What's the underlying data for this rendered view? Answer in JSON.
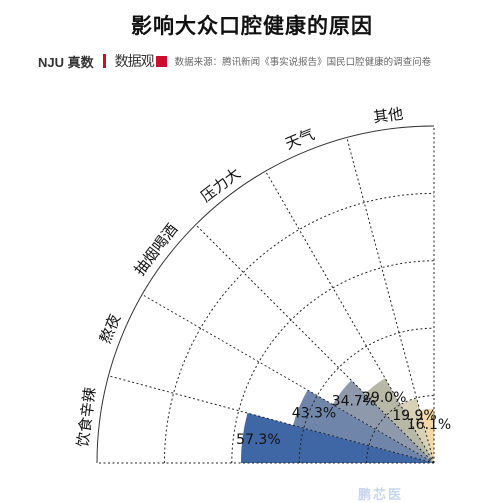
{
  "title": "影响大众口腔健康的原因",
  "byline": {
    "brand": "NJU 真数",
    "logo": "数据观",
    "source": "数据来源：腾讯新闻《事实说报告》国民口腔健康的调查问卷"
  },
  "watermark": "鹏芯医",
  "chart_data": {
    "type": "polar-bar",
    "categories": [
      "饮食辛辣",
      "熬夜",
      "抽烟喝酒",
      "压力大",
      "天气",
      "其他"
    ],
    "values": [
      57.3,
      43.3,
      34.7,
      29.0,
      19.9,
      16.1
    ],
    "value_labels": [
      "57.3%",
      "43.3%",
      "34.7%",
      "29.0%",
      "19.9%",
      "16.1%"
    ],
    "colors": [
      "#3f67a6",
      "#6f86aa",
      "#8e9aac",
      "#b7b8a6",
      "#d8d1b6",
      "#f3d8a6"
    ],
    "rmax": 100,
    "grid": true
  }
}
